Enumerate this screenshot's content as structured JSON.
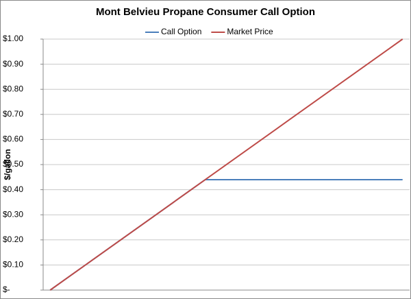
{
  "chart_data": {
    "type": "line",
    "title": "Mont Belvieu Propane Consumer Call Option",
    "y_label": "$/gallon",
    "categories": [
      null,
      null,
      null,
      null,
      null,
      null,
      null,
      null,
      null,
      null,
      null,
      null,
      null,
      null,
      null,
      null,
      null,
      null,
      null,
      null,
      null,
      null,
      null,
      null,
      null,
      null
    ],
    "series": [
      {
        "name": "Call Option",
        "color": "#4a7ebb",
        "values": [
          0,
          0.04,
          0.08,
          0.12,
          0.16,
          0.2,
          0.24,
          0.28,
          0.32,
          0.36,
          0.4,
          0.44,
          0.44,
          0.44,
          0.44,
          0.44,
          0.44,
          0.44,
          0.44,
          0.44,
          0.44,
          0.44,
          0.44,
          0.44,
          0.44,
          0.44
        ]
      },
      {
        "name": "Market Price",
        "color": "#be4b48",
        "values": [
          0,
          0.04,
          0.08,
          0.12,
          0.16,
          0.2,
          0.24,
          0.28,
          0.32,
          0.36,
          0.4,
          0.44,
          0.48,
          0.52,
          0.56,
          0.6,
          0.64,
          0.68,
          0.72,
          0.76,
          0.8,
          0.84,
          0.88,
          0.92,
          0.96,
          1.0
        ]
      }
    ],
    "ylim": [
      0,
      1.0
    ],
    "yticks": [
      {
        "value": 0,
        "label": "$-"
      },
      {
        "value": 0.1,
        "label": "$0.10"
      },
      {
        "value": 0.2,
        "label": "$0.20"
      },
      {
        "value": 0.3,
        "label": "$0.30"
      },
      {
        "value": 0.4,
        "label": "$0.40"
      },
      {
        "value": 0.5,
        "label": "$0.50"
      },
      {
        "value": 0.6,
        "label": "$0.60"
      },
      {
        "value": 0.7,
        "label": "$0.70"
      },
      {
        "value": 0.8,
        "label": "$0.80"
      },
      {
        "value": 0.9,
        "label": "$0.90"
      },
      {
        "value": 1.0,
        "label": "$1.00"
      }
    ],
    "grid": true,
    "legend": "top"
  }
}
